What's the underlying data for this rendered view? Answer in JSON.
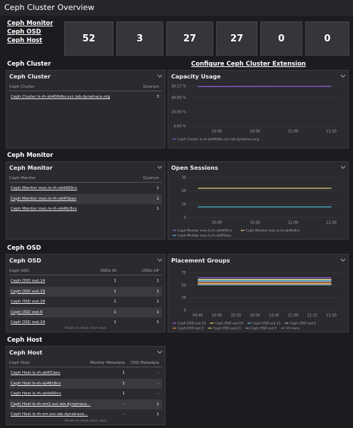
{
  "header": {
    "title": "Ceph Cluster Overview"
  },
  "links": [
    "Ceph Monitor",
    "Ceph OSD",
    "Ceph Host"
  ],
  "tiles": [
    52,
    3,
    27,
    27,
    0,
    0
  ],
  "sections": [
    {
      "title": "Ceph Cluster",
      "link": "Configure Ceph Cluster Extension",
      "table": {
        "title": "Ceph Cluster",
        "columns": [
          "Ceph Cluster",
          "Quorum"
        ],
        "rows": [
          [
            "Ceph Cluster ls-rh-sb4064bv.svc.lab.dynatrace.org",
            3
          ]
        ]
      },
      "chart": {
        "type": "line",
        "title": "Capacity Usage",
        "categories": [
          null,
          "10:00",
          null,
          "10:30",
          null,
          "11:00",
          null,
          "11:30"
        ],
        "ylim": [
          0,
          56.17
        ],
        "yticks": [
          {
            "value": 0,
            "label": "0.00 %"
          },
          {
            "value": 20,
            "label": "20.00 %"
          },
          {
            "value": 40,
            "label": "40.00 %"
          },
          {
            "value": 56.17,
            "label": "56.17 %"
          }
        ],
        "grid": true,
        "series": [
          {
            "name": "Ceph Cluster ls-rh-sb4064bv.svc.lab.dynatrace.org",
            "color": "#9b5de5",
            "values": [
              55.8,
              55.8,
              55.9,
              55.9,
              56.0,
              56.0,
              56.1,
              56.17
            ]
          }
        ]
      }
    },
    {
      "title": "Ceph Monitor",
      "table": {
        "title": "Ceph Monitor",
        "columns": [
          "Ceph Monitor",
          "Quorum"
        ],
        "rows": [
          [
            "Ceph Monitor mon.ls-rh-sb4d00cv",
            1
          ],
          [
            "Ceph Monitor mon.ls-rh-sb4f1bev",
            1
          ],
          [
            "Ceph Monitor mon.ls-rh-sb46c8cv",
            1
          ]
        ]
      },
      "chart": {
        "type": "line",
        "title": "Open Sessions",
        "categories": [
          null,
          "10:00",
          null,
          "10:30",
          null,
          "11:00",
          null,
          "11:30"
        ],
        "ylim": [
          0,
          30
        ],
        "yticks": [
          0,
          10,
          20,
          30
        ],
        "grid": true,
        "series": [
          {
            "name": "Ceph Monitor mon.ls-rh-sb4d00cv",
            "color": "#9b5de5",
            "values": [
              22,
              22,
              22,
              22,
              22,
              22,
              22,
              22
            ]
          },
          {
            "name": "Ceph Monitor mon.ls-rh-sb46c8cv",
            "color": "#f5d76e",
            "values": [
              22,
              22,
              22,
              22,
              22,
              22,
              22,
              22
            ]
          },
          {
            "name": "Ceph Monitor mon.ls-rh-sb4f1bev",
            "color": "#4fc3d9",
            "values": [
              8,
              8,
              8,
              8,
              8,
              8,
              8,
              8
            ]
          }
        ]
      }
    },
    {
      "title": "Ceph OSD",
      "table": {
        "title": "Ceph OSD",
        "columns": [
          "Ceph OSD",
          "OSDs IN",
          "OSDs UP"
        ],
        "rows": [
          [
            "Ceph OSD osd.14",
            1,
            1
          ],
          [
            "Ceph OSD osd.19",
            1,
            1
          ],
          [
            "Ceph OSD osd.16",
            1,
            1
          ],
          [
            "Ceph OSD osd.6",
            1,
            1
          ],
          [
            "Ceph OSD osd.24",
            1,
            1
          ]
        ],
        "footer": "Resize to show more rows"
      },
      "chart": {
        "type": "line",
        "title": "Placement Groups",
        "categories": [
          "09:45",
          "10:00",
          "10:15",
          "10:30",
          "10:45",
          "11:00",
          "11:15",
          "11:30"
        ],
        "ylim": [
          0,
          80
        ],
        "yticks": [
          0,
          25,
          50,
          75
        ],
        "grid": true,
        "legend_more": "10 more",
        "series": [
          {
            "name": "Ceph OSD osd.19",
            "color": "#9b5de5",
            "values": [
              65,
              65,
              65,
              65,
              65,
              65,
              65,
              65
            ]
          },
          {
            "name": "Ceph OSD osd.16",
            "color": "#f5d76e",
            "values": [
              62,
              62,
              62,
              62,
              62,
              62,
              62,
              62
            ]
          },
          {
            "name": "Ceph OSD osd.11",
            "color": "#4fc3d9",
            "values": [
              60,
              60,
              60,
              60,
              60,
              60,
              60,
              60
            ]
          },
          {
            "name": "Ceph OSD osd.0",
            "color": "#b0b8d0",
            "values": [
              58,
              58,
              58,
              58,
              58,
              58,
              58,
              58
            ]
          },
          {
            "name": "Ceph OSD osd.3",
            "color": "#f08a3c",
            "values": [
              55,
              55,
              55,
              55,
              55,
              55,
              55,
              55
            ]
          },
          {
            "name": "Ceph OSD osd.21",
            "color": "#e8c070",
            "values": [
              53,
              53,
              53,
              53,
              53,
              53,
              53,
              53
            ]
          },
          {
            "name": "Ceph OSD osd.2",
            "color": "#7fa8d8",
            "values": [
              51,
              51,
              51,
              51,
              51,
              51,
              51,
              51
            ]
          }
        ]
      }
    },
    {
      "title": "Ceph Host",
      "table": {
        "title": "Ceph Host",
        "columns": [
          "Ceph Host",
          "Monitor Metadata",
          "OSD Metadata"
        ],
        "rows": [
          [
            "Ceph Host ls-rh-sb4f1bev",
            1,
            "-"
          ],
          [
            "Ceph Host ls-rh-sb46c8cv",
            1,
            "-"
          ],
          [
            "Ceph Host ls-rh-sb4d00cv",
            1,
            "-"
          ],
          [
            "Ceph Host ls-rh-sm2.svc.lab.dynatrace...",
            "–",
            1
          ],
          [
            "Ceph Host ls-rh-sm.svc.lab.dynatrace...",
            "–",
            1
          ]
        ],
        "footer": "Resize to show more rows"
      }
    }
  ]
}
